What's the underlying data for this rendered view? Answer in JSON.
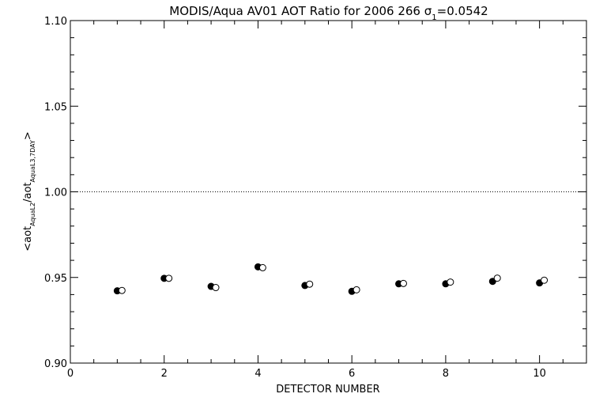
{
  "chart_data": {
    "type": "scatter",
    "title": "MODIS/Aqua AV01 AOT Ratio for 2006 266 σ",
    "title_sub": "1",
    "title_suffix": "=0.0542",
    "xlabel": "DETECTOR NUMBER",
    "ylabel": {
      "prefix": "<aot",
      "sub1": "AquaL2",
      "mid": "/aot",
      "sub2": "AquaL3,7DAY",
      "suffix": ">"
    },
    "xlim": [
      0,
      11
    ],
    "ylim": [
      0.9,
      1.1
    ],
    "x_ticks": [
      0,
      2,
      4,
      6,
      8,
      10
    ],
    "x_tick_labels": [
      "0",
      "2",
      "4",
      "6",
      "8",
      "10"
    ],
    "y_ticks": [
      0.9,
      0.95,
      1.0,
      1.05,
      1.1
    ],
    "y_tick_labels": [
      "0.90",
      "0.95",
      "1.00",
      "1.05",
      "1.10"
    ],
    "reference_line": {
      "y": 1.0,
      "style": "dotted"
    },
    "grid": false,
    "series": [
      {
        "marker": "filled-circle",
        "color": "#000000",
        "x": [
          1,
          2,
          3,
          4,
          5,
          6,
          7,
          8,
          9,
          10
        ],
        "y": [
          0.9422,
          0.9495,
          0.9448,
          0.9562,
          0.9453,
          0.9419,
          0.9463,
          0.9463,
          0.9477,
          0.9468
        ]
      },
      {
        "marker": "open-circle",
        "color": "#000000",
        "x": [
          1.1,
          2.1,
          3.1,
          4.1,
          5.1,
          6.1,
          7.1,
          8.1,
          9.1,
          10.1
        ],
        "y": [
          0.9424,
          0.9495,
          0.9441,
          0.9557,
          0.9461,
          0.9428,
          0.9465,
          0.9473,
          0.9496,
          0.9484
        ]
      }
    ]
  }
}
